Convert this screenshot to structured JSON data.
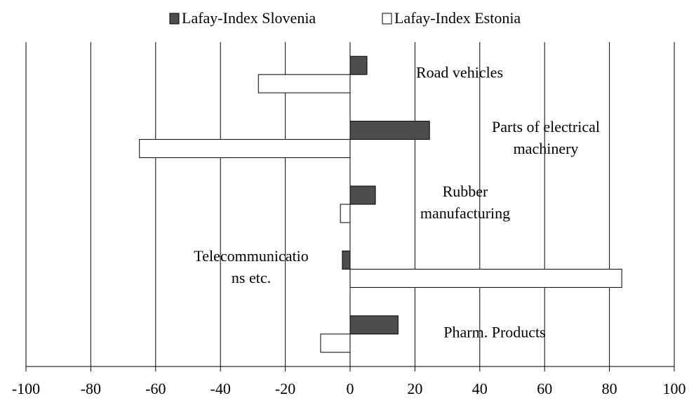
{
  "chart_data": {
    "type": "barh",
    "categories": [
      "Road vehicles",
      "Parts of electrical\nmachinery",
      "Rubber\nmanufacturing",
      "Telecommunicatio\nns etc.",
      "Pharm. Products"
    ],
    "series": [
      {
        "name": "Lafay-Index Slovenia",
        "color": "#4d4d4d",
        "values": [
          5.2,
          24.5,
          7.8,
          -2.4,
          14.8
        ]
      },
      {
        "name": "Lafay-Index Estonia",
        "color": "#ffffff",
        "values": [
          -28.3,
          -65,
          -3,
          83.8,
          -9.1
        ]
      }
    ],
    "xlim": [
      -100,
      100
    ],
    "xticks": [
      -100,
      -80,
      -60,
      -40,
      -20,
      0,
      20,
      40,
      60,
      80,
      100
    ],
    "grid": true
  }
}
